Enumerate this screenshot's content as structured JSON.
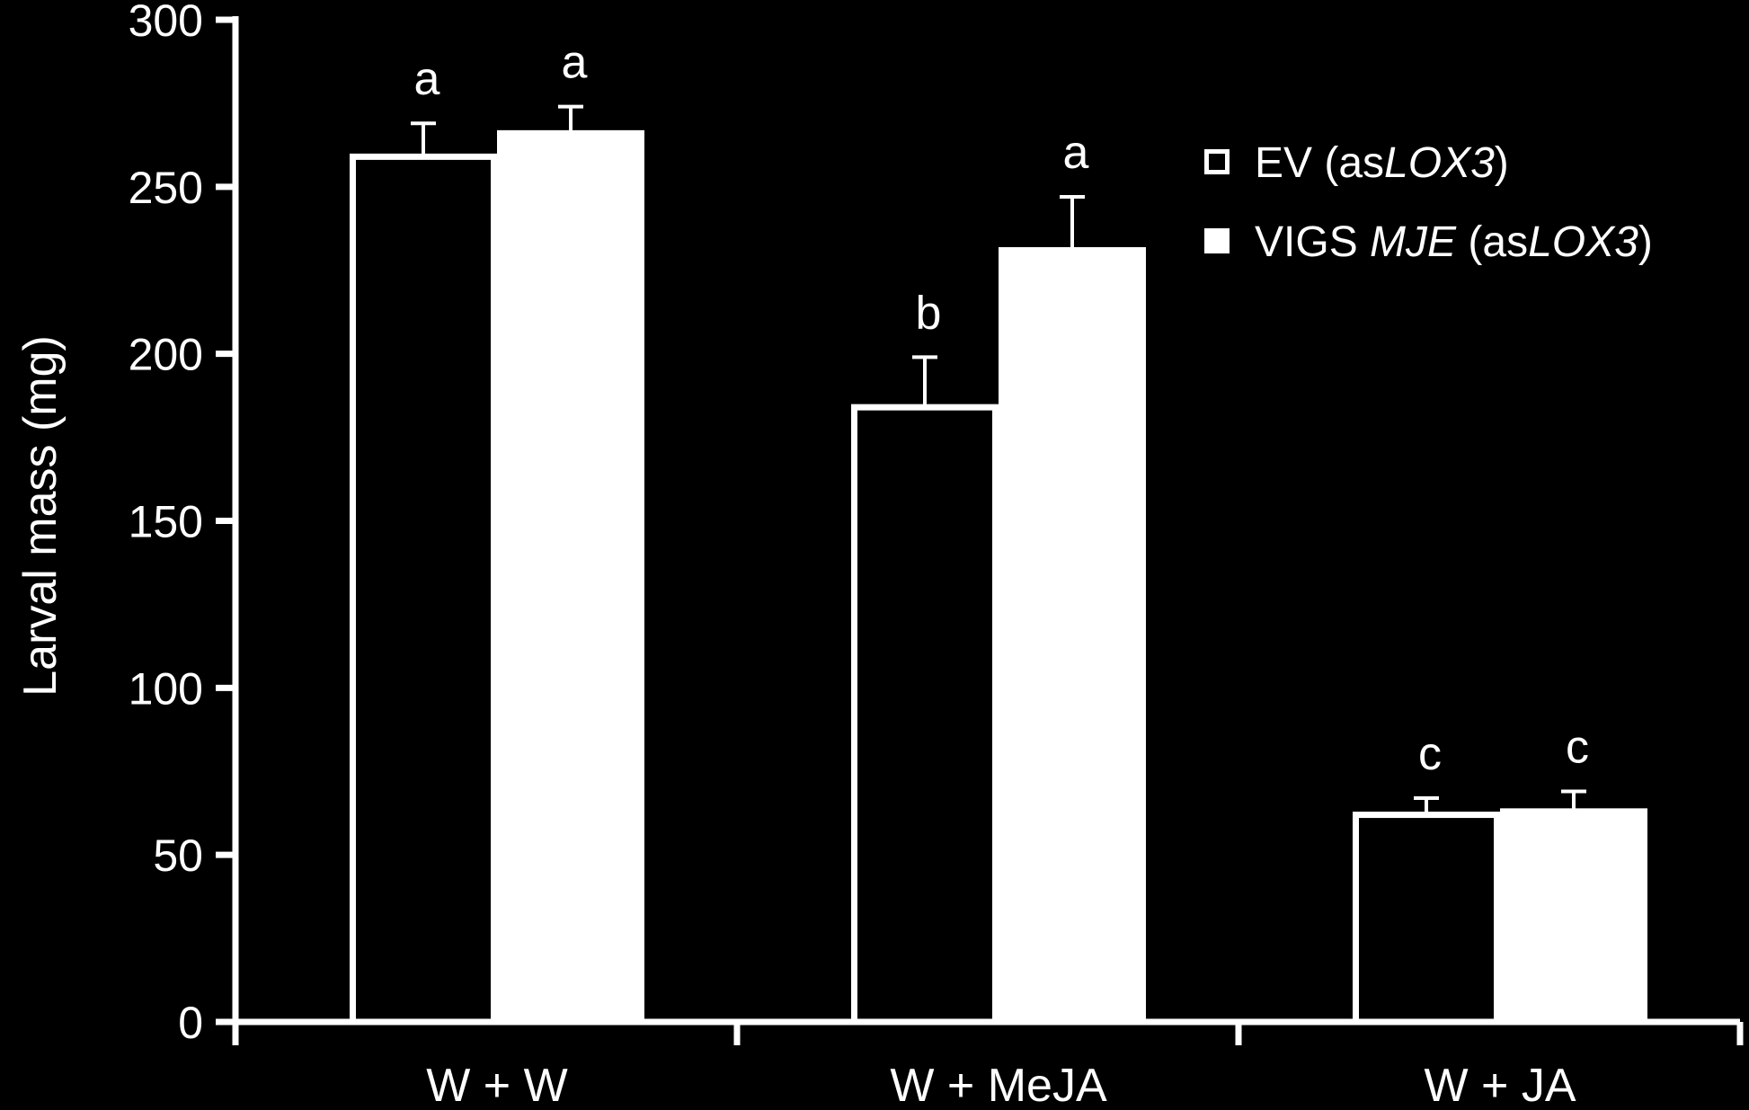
{
  "chart_data": {
    "type": "bar",
    "ylabel": "Larval mass (mg)",
    "xlabel": "",
    "ylim": [
      0,
      300
    ],
    "yticks": [
      "0",
      "50",
      "100",
      "150",
      "200",
      "250",
      "300"
    ],
    "categories": [
      "W + W",
      "W + MeJA",
      "W + JA"
    ],
    "series": [
      {
        "name_parts": [
          {
            "text": "EV (as",
            "italic": false
          },
          {
            "text": "LOX3",
            "italic": true
          },
          {
            "text": ")",
            "italic": false
          }
        ],
        "fill": "#000000",
        "stroke": "#ffffff",
        "values": [
          259,
          184,
          62
        ],
        "errors": [
          10,
          15,
          5
        ],
        "letters": [
          "a",
          "b",
          "c"
        ]
      },
      {
        "name_parts": [
          {
            "text": "VIGS ",
            "italic": false
          },
          {
            "text": "MJE",
            "italic": true
          },
          {
            "text": " (as",
            "italic": false
          },
          {
            "text": "LOX3",
            "italic": true
          },
          {
            "text": ")",
            "italic": false
          }
        ],
        "fill": "#ffffff",
        "stroke": "#ffffff",
        "values": [
          266,
          231,
          63
        ],
        "errors": [
          8,
          16,
          6
        ],
        "letters": [
          "a",
          "a",
          "c"
        ]
      }
    ],
    "legend_position": "top-right",
    "grid": false,
    "background": "#000000",
    "foreground": "#ffffff"
  }
}
